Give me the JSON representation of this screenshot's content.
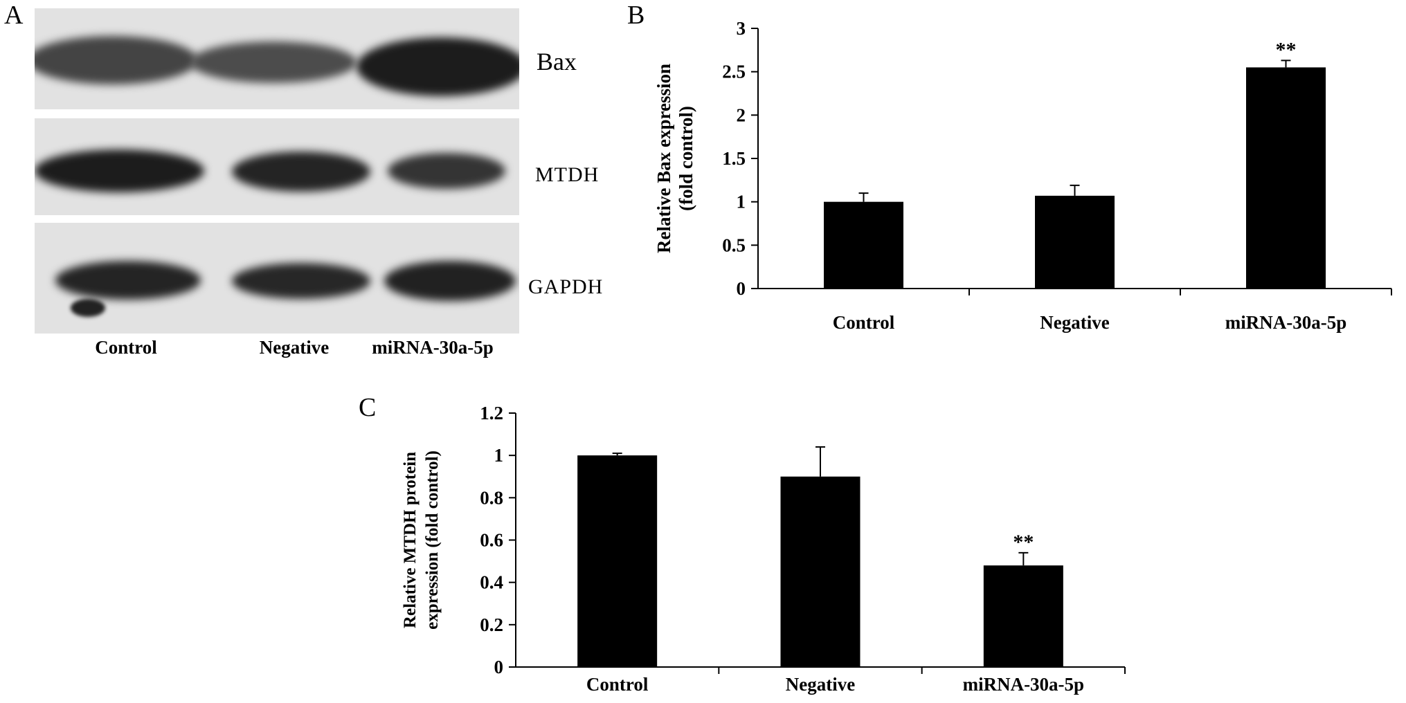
{
  "panels": {
    "a": {
      "letter": "A"
    },
    "b": {
      "letter": "B"
    },
    "c": {
      "letter": "C"
    }
  },
  "blot": {
    "lanes": [
      "Control",
      "Negative",
      "miRNA-30a-5p"
    ],
    "rows": [
      {
        "label": "Bax",
        "band_intensity": [
          0.7,
          0.65,
          0.95
        ]
      },
      {
        "label": "MTDH",
        "band_intensity": [
          0.95,
          0.9,
          0.8
        ]
      },
      {
        "label": "GAPDH",
        "band_intensity": [
          0.9,
          0.88,
          0.92
        ]
      }
    ]
  },
  "chart_data": [
    {
      "panel": "B",
      "type": "bar",
      "categories": [
        "Control",
        "Negative",
        "miRNA-30a-5p"
      ],
      "values": [
        1.0,
        1.07,
        2.55
      ],
      "errors": [
        0.1,
        0.12,
        0.08
      ],
      "annotations": [
        "",
        "",
        "**"
      ],
      "ylabel_lines": [
        "Relative Bax expression",
        "(fold control)"
      ],
      "ylim": [
        0,
        3
      ],
      "yticks": [
        0,
        0.5,
        1,
        1.5,
        2,
        2.5,
        3
      ],
      "ytick_labels": [
        "0",
        "0.5",
        "1",
        "1.5",
        "2",
        "2.5",
        "3"
      ],
      "bar_color": "#000000",
      "grid": false
    },
    {
      "panel": "C",
      "type": "bar",
      "categories": [
        "Control",
        "Negative",
        "miRNA-30a-5p"
      ],
      "values": [
        1.0,
        0.9,
        0.48
      ],
      "errors": [
        0.01,
        0.14,
        0.06
      ],
      "annotations": [
        "",
        "",
        "**"
      ],
      "ylabel_lines": [
        "Relative MTDH protein",
        "expression (fold control)"
      ],
      "ylim": [
        0,
        1.2
      ],
      "yticks": [
        0,
        0.2,
        0.4,
        0.6,
        0.8,
        1,
        1.2
      ],
      "ytick_labels": [
        "0",
        "0.2",
        "0.4",
        "0.6",
        "0.8",
        "1",
        "1.2"
      ],
      "bar_color": "#000000",
      "grid": false
    }
  ]
}
